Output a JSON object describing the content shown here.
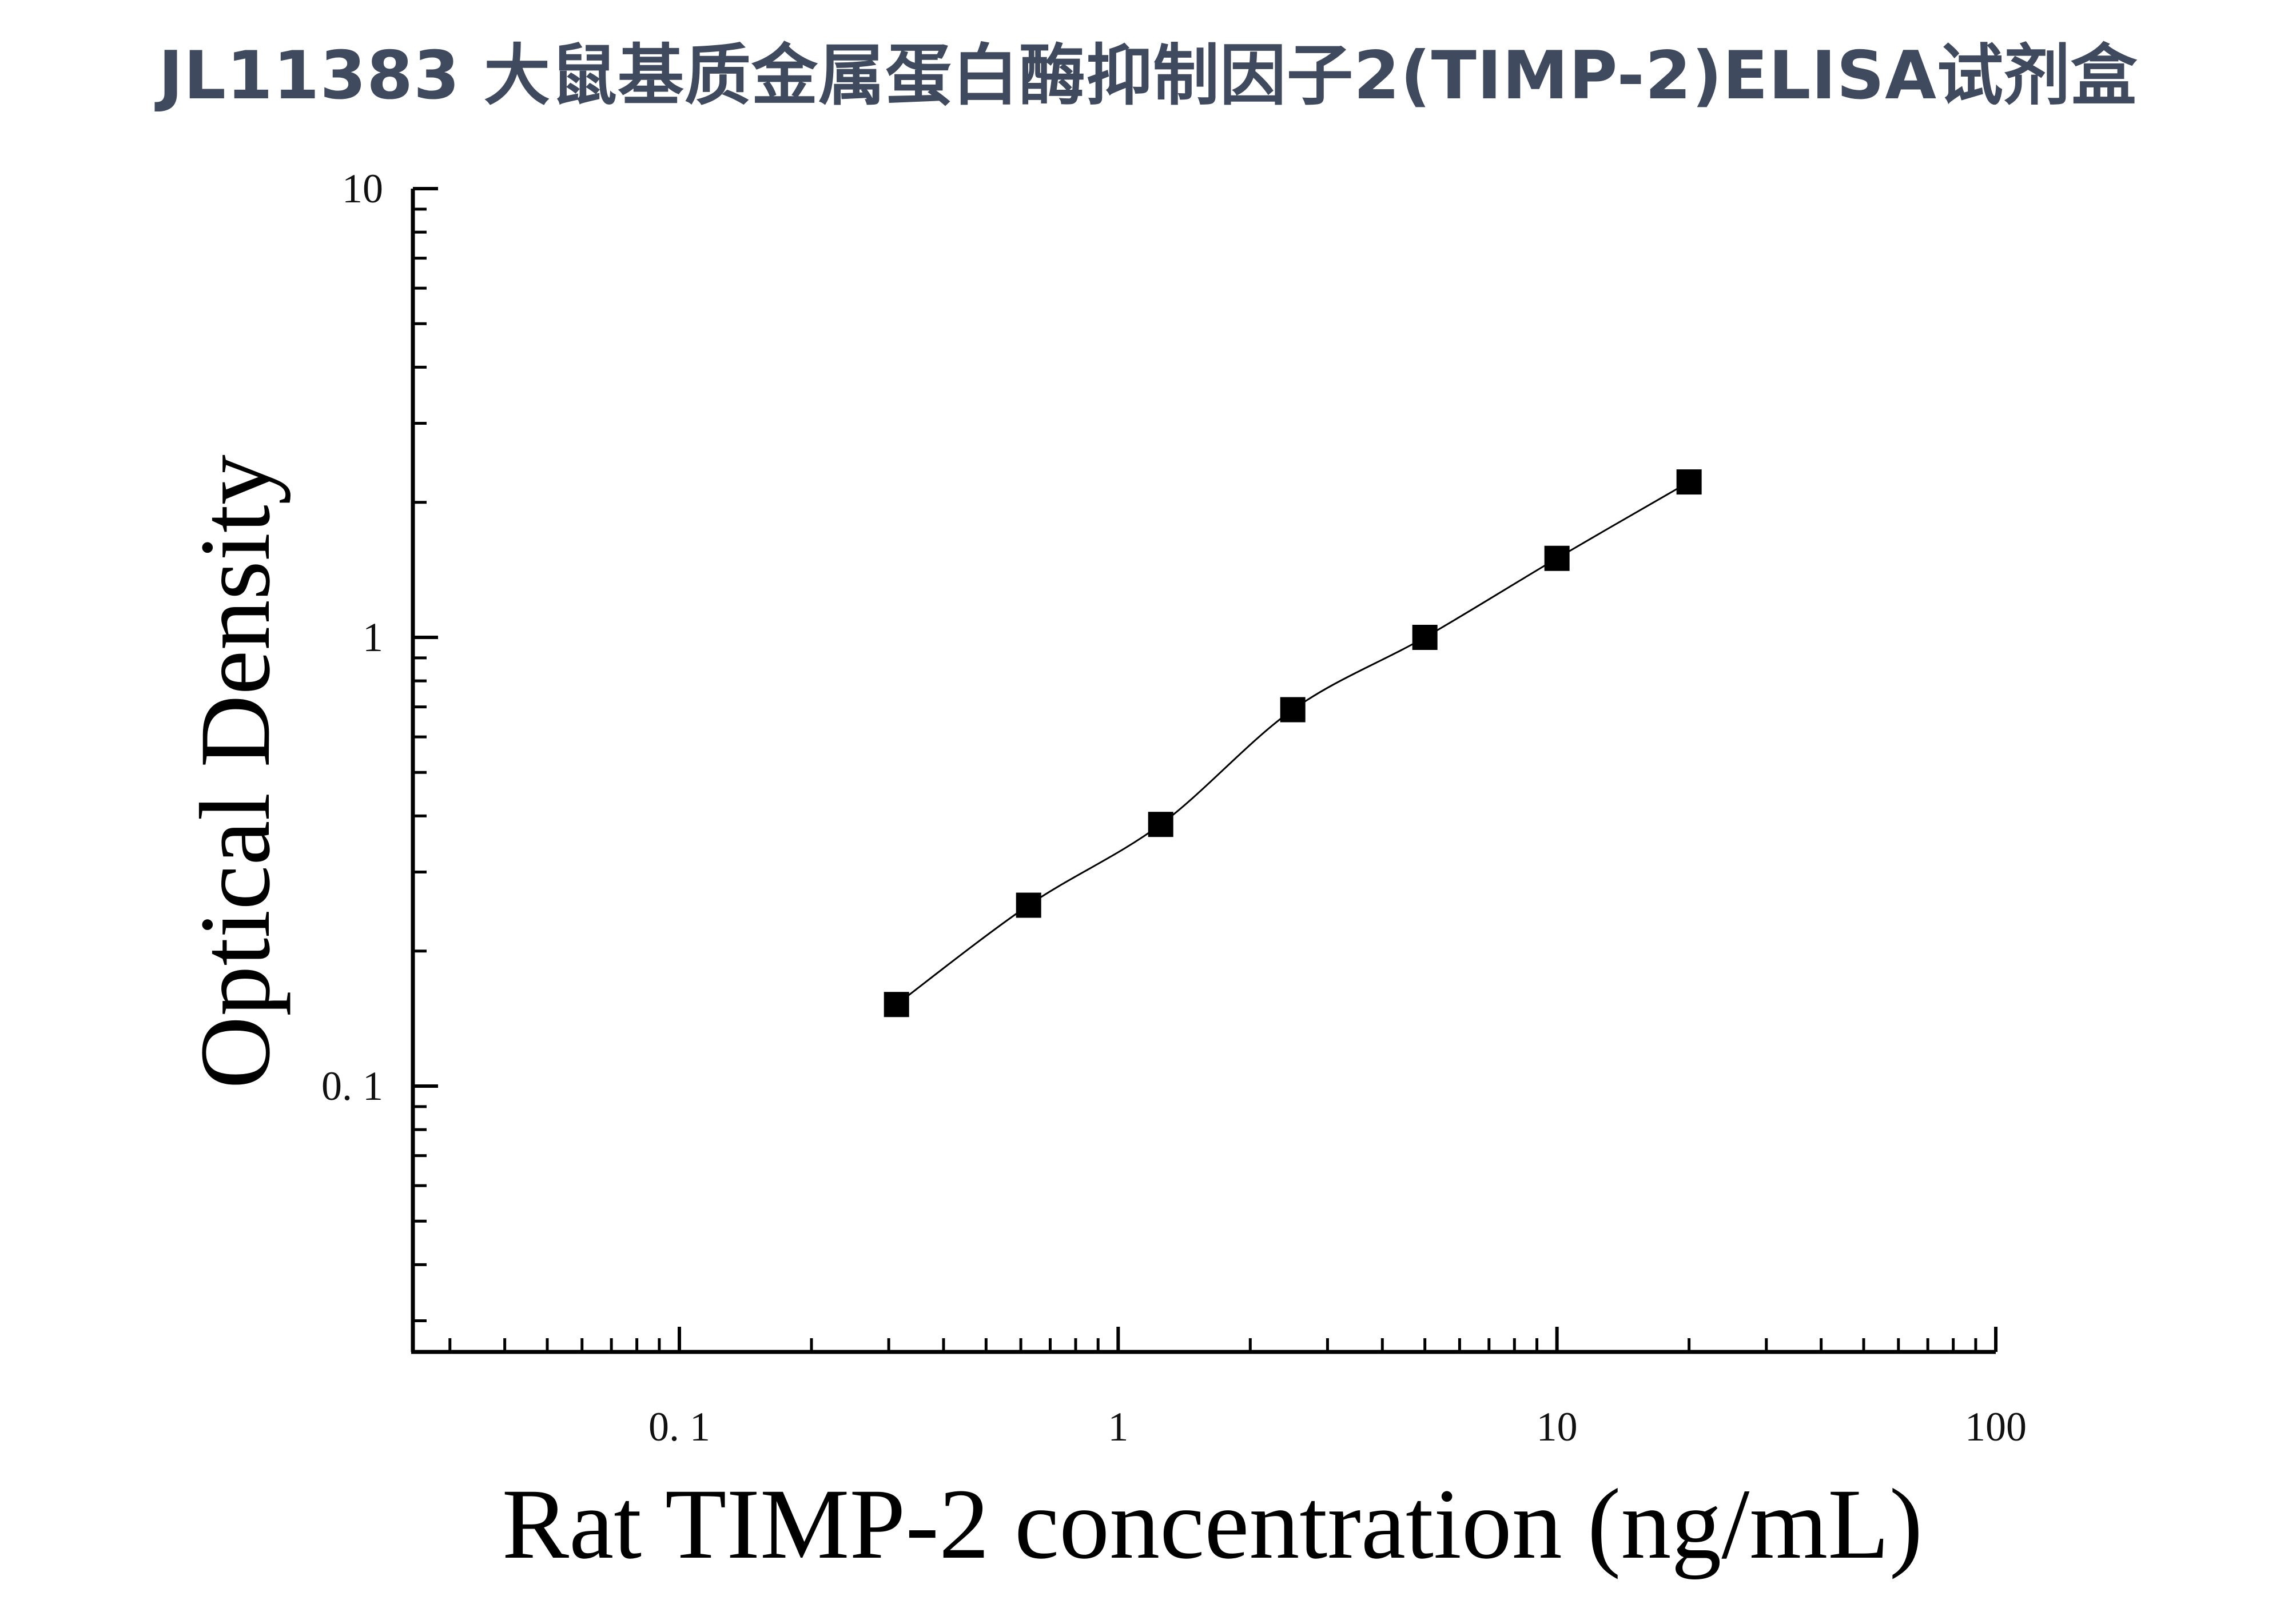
{
  "header": {
    "title": "JL11383 大鼠基质金属蛋白酶抑制因子2(TIMP-2)ELISA试剂盒",
    "title_color": "#404a5e"
  },
  "chart_data": {
    "type": "scatter",
    "title": "",
    "xlabel": "Rat TIMP-2 concentration (ng/mL)",
    "ylabel": "Optical Density",
    "x_scale": "log",
    "y_scale": "log",
    "xlim": [
      0.027,
      100
    ],
    "ylim": [
      0.026,
      10
    ],
    "x_ticks": [
      {
        "value": 0.1,
        "label": "0. 1"
      },
      {
        "value": 1,
        "label": "1"
      },
      {
        "value": 10,
        "label": "10"
      },
      {
        "value": 100,
        "label": "100"
      }
    ],
    "y_ticks": [
      {
        "value": 0.1,
        "label": "0. 1"
      },
      {
        "value": 1,
        "label": "1"
      },
      {
        "value": 10,
        "label": "10"
      }
    ],
    "grid": false,
    "legend": "none",
    "marker": "square",
    "marker_color": "#000000",
    "line_color": "#000000",
    "series": [
      {
        "x": [
          0.3125,
          0.625,
          1.25,
          2.5,
          5,
          10,
          20
        ],
        "y": [
          0.152,
          0.253,
          0.383,
          0.69,
          1.0,
          1.5,
          2.22
        ]
      }
    ]
  }
}
